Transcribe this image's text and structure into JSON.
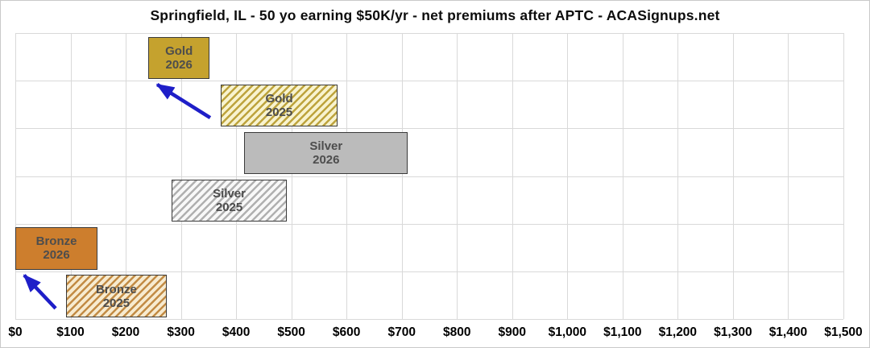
{
  "title": "Springfield, IL - 50 yo earning $50K/yr - net premiums after APTC - ACASignups.net",
  "colors": {
    "background": "#ffffff",
    "figure_border": "#c9c9c9",
    "gridline": "#d9d9d9",
    "bar_border": "#3a3a3a",
    "bar_label_text": "#4d4d4d",
    "axis_tick_text": "#000000",
    "arrow": "#1e1ec8",
    "gold_solid": "#c5a22e",
    "gold_hatch_stripe": "#bda33c",
    "gold_hatch_bg": "#f8f3cf",
    "silver_solid": "#bbbbbb",
    "silver_hatch_stripe": "#b0b0b0",
    "silver_hatch_bg": "#f8f8f8",
    "bronze_solid": "#cd7e2d",
    "bronze_hatch_stripe": "#c28b44",
    "bronze_hatch_bg": "#f7ebd0"
  },
  "chart_data": {
    "type": "bar",
    "variant": "horizontal-floating-range",
    "title": "Springfield, IL - 50 yo earning $50K/yr - net premiums after APTC - ACASignups.net",
    "xlabel": "",
    "ylabel": "",
    "grid": true,
    "legend": false,
    "x_axis": {
      "min": 0,
      "max": 1500,
      "tick_interval": 100,
      "tick_labels": [
        "$0",
        "$100",
        "$200",
        "$300",
        "$400",
        "$500",
        "$600",
        "$700",
        "$800",
        "$900",
        "$1,000",
        "$1,100",
        "$1,200",
        "$1,300",
        "$1,400",
        "$1,500"
      ]
    },
    "bars": [
      {
        "id": "gold-2026",
        "tier": "Gold",
        "year": "2026",
        "range_usd": [
          241,
          352
        ],
        "fill": "solid",
        "color_key": "gold"
      },
      {
        "id": "gold-2025",
        "tier": "Gold",
        "year": "2025",
        "range_usd": [
          372,
          584
        ],
        "fill": "hatched",
        "color_key": "gold"
      },
      {
        "id": "silver-2026",
        "tier": "Silver",
        "year": "2026",
        "range_usd": [
          415,
          711
        ],
        "fill": "solid",
        "color_key": "silver"
      },
      {
        "id": "silver-2025",
        "tier": "Silver",
        "year": "2025",
        "range_usd": [
          283,
          492
        ],
        "fill": "hatched",
        "color_key": "silver"
      },
      {
        "id": "bronze-2026",
        "tier": "Bronze",
        "year": "2026",
        "range_usd": [
          0,
          149
        ],
        "fill": "solid",
        "color_key": "bronze"
      },
      {
        "id": "bronze-2025",
        "tier": "Bronze",
        "year": "2025",
        "range_usd": [
          92,
          274
        ],
        "fill": "hatched",
        "color_key": "bronze"
      }
    ],
    "annotations": [
      {
        "id": "gold",
        "type": "arrow",
        "from": "gold-2025",
        "to": "gold-2026"
      },
      {
        "id": "bronze",
        "type": "arrow",
        "from": "bronze-2025",
        "to": "bronze-2026"
      }
    ]
  }
}
